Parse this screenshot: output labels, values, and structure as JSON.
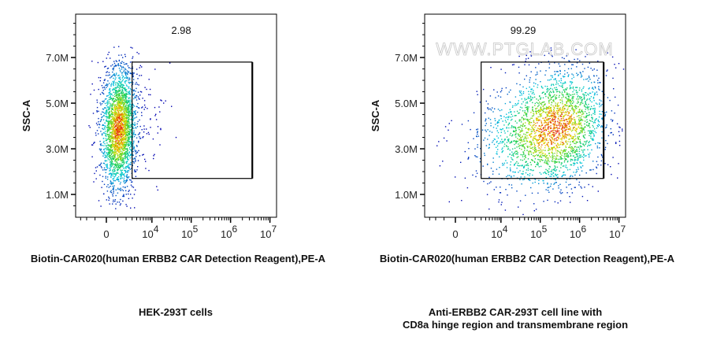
{
  "chart_data": [
    {
      "type": "scatter",
      "subtype": "flow-cytometry-pseudocolor",
      "xlabel": "Biotin-CAR020(human ERBB2 CAR Detection Reagent),PE-A",
      "ylabel": "SSC-A",
      "x_scale": "biexponential",
      "xlim": [
        -4200,
        14600000
      ],
      "ylim": [
        0,
        8900000
      ],
      "x_ticks": [
        {
          "value": 0,
          "label": "0"
        },
        {
          "value": 10000,
          "base": "10",
          "exp": "4"
        },
        {
          "value": 100000,
          "base": "10",
          "exp": "5"
        },
        {
          "value": 1000000,
          "base": "10",
          "exp": "6"
        },
        {
          "value": 10000000,
          "base": "10",
          "exp": "7"
        }
      ],
      "y_ticks": [
        {
          "value": 1000000,
          "label": "1.0M"
        },
        {
          "value": 3000000,
          "label": "3.0M"
        },
        {
          "value": 5000000,
          "label": "5.0M"
        },
        {
          "value": 7000000,
          "label": "7.0M"
        }
      ],
      "gate": {
        "x": [
          3000,
          3500000
        ],
        "y": [
          1700000,
          6800000
        ],
        "percent_label": "2.98"
      },
      "population": {
        "x_center": 1040,
        "y_center": 3900000
      },
      "caption": [
        "HEK-293T cells"
      ]
    },
    {
      "type": "scatter",
      "subtype": "flow-cytometry-pseudocolor",
      "xlabel": "Biotin-CAR020(human ERBB2 CAR Detection Reagent),PE-A",
      "ylabel": "SSC-A",
      "x_scale": "biexponential",
      "xlim": [
        -4200,
        14600000
      ],
      "ylim": [
        0,
        8900000
      ],
      "x_ticks": [
        {
          "value": 0,
          "label": "0"
        },
        {
          "value": 10000,
          "base": "10",
          "exp": "4"
        },
        {
          "value": 100000,
          "base": "10",
          "exp": "5"
        },
        {
          "value": 1000000,
          "base": "10",
          "exp": "6"
        },
        {
          "value": 10000000,
          "base": "10",
          "exp": "7"
        }
      ],
      "y_ticks": [
        {
          "value": 1000000,
          "label": "1.0M"
        },
        {
          "value": 3000000,
          "label": "3.0M"
        },
        {
          "value": 5000000,
          "label": "5.0M"
        },
        {
          "value": 7000000,
          "label": "7.0M"
        }
      ],
      "gate": {
        "x": [
          3000,
          4000000
        ],
        "y": [
          1700000,
          6800000
        ],
        "percent_label": "99.29"
      },
      "population": {
        "x_center": 220000,
        "y_center": 3900000
      },
      "caption": [
        "Anti-ERBB2 CAR-293T cell line with",
        "CD8a hinge region and transmembrane region"
      ]
    }
  ],
  "watermark": "WWW.PTGLAB.COM",
  "colormap": [
    "#0000b0",
    "#00c8e0",
    "#20d040",
    "#f0e000",
    "#e01010"
  ]
}
